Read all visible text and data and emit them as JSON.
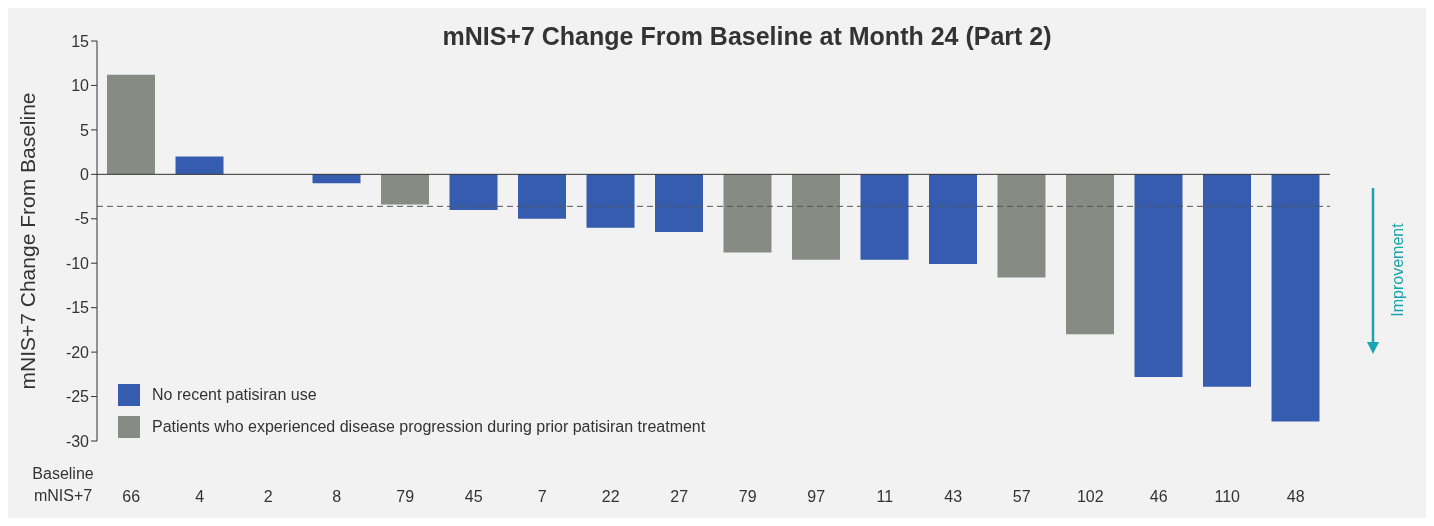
{
  "chart_data": {
    "type": "bar",
    "title": "mNIS+7 Change From Baseline at Month 24 (Part 2)",
    "ylabel": "mNIS+7 Change From Baseline",
    "xlabel": "Baseline mNIS+7",
    "categories": [
      "66",
      "4",
      "2",
      "8",
      "79",
      "45",
      "7",
      "22",
      "27",
      "79",
      "97",
      "11",
      "43",
      "57",
      "102",
      "46",
      "110",
      "48"
    ],
    "series": [
      {
        "name": "No recent patisiran use",
        "color": "#355cae",
        "values": [
          null,
          2,
          0,
          -1,
          null,
          -4,
          -5,
          -6,
          -6.5,
          null,
          null,
          -9.6,
          -10.1,
          null,
          null,
          -22.8,
          -23.9,
          -27.8
        ]
      },
      {
        "name": "Patients who experienced disease progression during prior patisiran treatment",
        "color": "#868c84",
        "values": [
          11.2,
          null,
          null,
          null,
          -3.4,
          null,
          null,
          null,
          null,
          -8.8,
          -9.6,
          null,
          null,
          -11.6,
          -18,
          null,
          null,
          null
        ]
      }
    ],
    "ylim": [
      -30,
      15
    ],
    "yticks": [
      -30,
      -25,
      -20,
      -15,
      -10,
      -5,
      0,
      5,
      10,
      15
    ],
    "ref_lines": [
      {
        "axis": "y",
        "value": -3.6,
        "color": "#555555",
        "line_style": "dashed"
      }
    ],
    "annotations": [
      "Improvement"
    ],
    "legend": "bottom left"
  }
}
